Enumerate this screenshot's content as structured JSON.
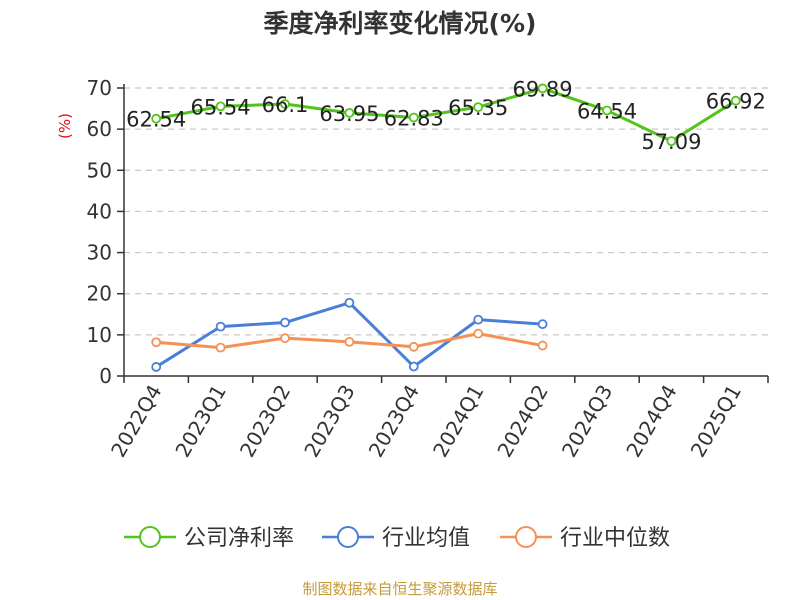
{
  "chart_data": {
    "type": "line",
    "title": "季度净利率变化情况(%)",
    "ylabel": "(%)",
    "categories": [
      "2022Q4",
      "2023Q1",
      "2023Q2",
      "2023Q3",
      "2023Q4",
      "2024Q1",
      "2024Q2",
      "2024Q3",
      "2024Q4",
      "2025Q1"
    ],
    "ylim": [
      0,
      70
    ],
    "yticks": [
      0,
      10,
      20,
      30,
      40,
      50,
      60,
      70
    ],
    "grid": true,
    "legend_position": "bottom",
    "series": [
      {
        "name": "公司净利率",
        "color": "#52c41a",
        "values": [
          62.54,
          65.54,
          66.1,
          63.95,
          62.83,
          65.35,
          69.89,
          64.54,
          57.09,
          66.92
        ],
        "data_labels": [
          "62.54",
          "65.54",
          "66.1",
          "63.95",
          "62.83",
          "65.35",
          "69.89",
          "64.54",
          "57.09",
          "66.92"
        ]
      },
      {
        "name": "行业均值",
        "color": "#4a7fd9",
        "values": [
          2.2,
          12.0,
          13.0,
          17.8,
          2.3,
          13.7,
          12.6,
          null,
          null,
          null
        ]
      },
      {
        "name": "行业中位数",
        "color": "#f59154",
        "values": [
          8.2,
          6.9,
          9.2,
          8.3,
          7.1,
          10.3,
          7.4,
          null,
          null,
          null
        ]
      }
    ]
  },
  "source_note": "制图数据来自恒生聚源数据库"
}
